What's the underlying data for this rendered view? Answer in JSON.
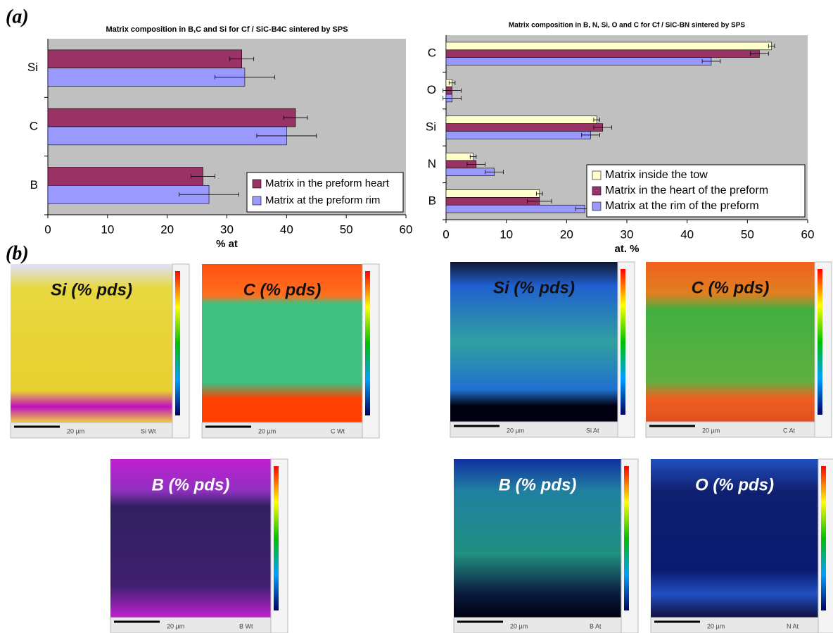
{
  "chart_data": [
    {
      "type": "hbar",
      "title": "Matrix composition in B,C and Si for  Cf / SiC-B4C sintered by SPS",
      "categories": [
        "B",
        "C",
        "Si"
      ],
      "series": [
        {
          "name": "Matrix in the preform heart",
          "color": "#993366",
          "values": [
            26,
            41.5,
            32.5
          ],
          "errors": [
            2,
            2,
            2
          ]
        },
        {
          "name": "Matrix at the preform rim",
          "color": "#9999ff",
          "values": [
            27,
            40,
            33
          ],
          "errors": [
            5,
            5,
            5
          ]
        }
      ],
      "xlabel": "% at",
      "xlim": [
        0,
        60
      ],
      "xticks": [
        0,
        10,
        20,
        30,
        40,
        50,
        60
      ],
      "legend": "lower right",
      "background": "#c0c0c0"
    },
    {
      "type": "hbar",
      "title": "Matrix composition in B, N, Si, O and C for  Cf / SiC-BN sintered by SPS",
      "categories": [
        "B",
        "N",
        "Si",
        "O",
        "C"
      ],
      "series": [
        {
          "name": "Matrix inside the tow",
          "color": "#ffffcc",
          "values": [
            15.5,
            4.5,
            25,
            1,
            54
          ],
          "errors": [
            0.5,
            0.5,
            0.5,
            0.5,
            0.5
          ]
        },
        {
          "name": "Matrix in the heart of the preform",
          "color": "#993366",
          "values": [
            15.5,
            5,
            26,
            1,
            52
          ],
          "errors": [
            2,
            1.5,
            1.5,
            1.5,
            1.5
          ]
        },
        {
          "name": "Matrix at the rim of the preform",
          "color": "#9999ff",
          "values": [
            23,
            8,
            24,
            1,
            44
          ],
          "errors": [
            1.5,
            1.5,
            1.5,
            1.5,
            1.5
          ]
        }
      ],
      "xlabel": "at. %",
      "xlim": [
        0,
        60
      ],
      "xticks": [
        0,
        10,
        20,
        30,
        40,
        50,
        60
      ],
      "legend": "lower right",
      "background": "#c0c0c0"
    }
  ],
  "figure": {
    "panel_labels": [
      "(a)",
      "(b)"
    ],
    "maps": [
      {
        "label": "Si (% pds)",
        "scale": "20 µm",
        "signal": "Si Wt"
      },
      {
        "label": "C (% pds)",
        "scale": "20 µm",
        "signal": "C Wt"
      },
      {
        "label": "B (% pds)",
        "scale": "20 µm",
        "signal": "B Wt"
      },
      {
        "label": "Si (% pds)",
        "scale": "20 µm",
        "signal": "Si At"
      },
      {
        "label": "C (% pds)",
        "scale": "20 µm",
        "signal": "C At"
      },
      {
        "label": "B (% pds)",
        "scale": "20 µm",
        "signal": "B At"
      },
      {
        "label": "O (% pds)",
        "scale": "20 µm",
        "signal": "N At"
      }
    ]
  }
}
